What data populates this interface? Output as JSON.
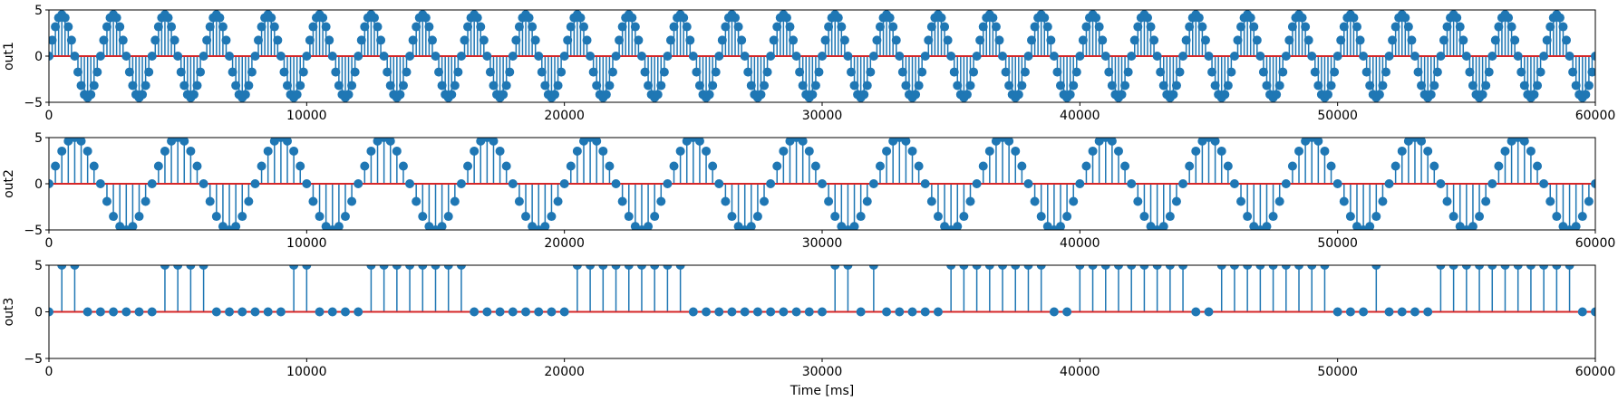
{
  "chart_data": [
    {
      "type": "stem",
      "ylabel": "out1",
      "xlim": [
        0,
        60000
      ],
      "ylim": [
        -5,
        5
      ],
      "xticks": [
        0,
        10000,
        20000,
        30000,
        40000,
        50000,
        60000
      ],
      "yticks": [
        -5,
        0,
        5
      ],
      "baseline": 0,
      "generator": {
        "kind": "sine",
        "amplitude": 4.5,
        "period_ms": 2000,
        "sample_step_ms": 125,
        "x_start": 0,
        "x_end": 60000
      },
      "x": [
        0,
        125,
        250,
        375,
        500,
        625,
        750,
        875,
        1000,
        1125,
        1250,
        1375,
        1500,
        1625,
        1750,
        1875,
        2000
      ],
      "y": [
        0,
        1.72,
        3.18,
        4.16,
        4.5,
        4.16,
        3.18,
        1.72,
        0,
        -1.72,
        -3.18,
        -4.16,
        -4.5,
        -4.16,
        -3.18,
        -1.72,
        0
      ],
      "stem_color": "#1f77b4",
      "baseline_color": "#d62728"
    },
    {
      "type": "stem",
      "ylabel": "out2",
      "xlim": [
        0,
        60000
      ],
      "ylim": [
        -5,
        5
      ],
      "xticks": [
        0,
        10000,
        20000,
        30000,
        40000,
        50000,
        60000
      ],
      "yticks": [
        -5,
        0,
        5
      ],
      "baseline": 0,
      "generator": {
        "kind": "sine",
        "amplitude": 5,
        "period_ms": 4000,
        "sample_step_ms": 250,
        "x_start": 0,
        "x_end": 60000
      },
      "x": [
        0,
        250,
        500,
        750,
        1000,
        1250,
        1500,
        1750,
        2000,
        2250,
        2500,
        2750,
        3000,
        3250,
        3500,
        3750,
        4000
      ],
      "y": [
        0,
        1.91,
        3.54,
        4.62,
        5,
        4.62,
        3.54,
        1.91,
        0,
        -1.91,
        -3.54,
        -4.62,
        -5,
        -4.62,
        -3.54,
        -1.91,
        0
      ],
      "stem_color": "#1f77b4",
      "baseline_color": "#d62728"
    },
    {
      "type": "stem",
      "ylabel": "out3",
      "xlabel": "Time [ms]",
      "xlim": [
        0,
        60000
      ],
      "ylim": [
        -5,
        5
      ],
      "xticks": [
        0,
        10000,
        20000,
        30000,
        40000,
        50000,
        60000
      ],
      "yticks": [
        -5,
        0,
        5
      ],
      "baseline": 0,
      "sample_step_ms": 500,
      "x_start": 0,
      "values": [
        0,
        5,
        5,
        0,
        0,
        0,
        0,
        0,
        0,
        5,
        5,
        5,
        5,
        0,
        0,
        0,
        0,
        0,
        0,
        5,
        5,
        0,
        0,
        0,
        0,
        5,
        5,
        5,
        5,
        5,
        5,
        5,
        5,
        0,
        0,
        0,
        0,
        0,
        0,
        0,
        0,
        5,
        5,
        5,
        5,
        5,
        5,
        5,
        5,
        5,
        0,
        0,
        0,
        0,
        0,
        0,
        0,
        0,
        0,
        0,
        0,
        5,
        5,
        0,
        5,
        0,
        0,
        0,
        0,
        0,
        5,
        5,
        5,
        5,
        5,
        5,
        5,
        5,
        0,
        0,
        5,
        5,
        5,
        5,
        5,
        5,
        5,
        5,
        5,
        0,
        0,
        5,
        5,
        5,
        5,
        5,
        5,
        5,
        5,
        5,
        0,
        0,
        0,
        5,
        0,
        0,
        0,
        0,
        5,
        5,
        5,
        5,
        5,
        5,
        5,
        5,
        5,
        5,
        5,
        0,
        0
      ],
      "stem_color": "#1f77b4",
      "baseline_color": "#d62728"
    }
  ]
}
